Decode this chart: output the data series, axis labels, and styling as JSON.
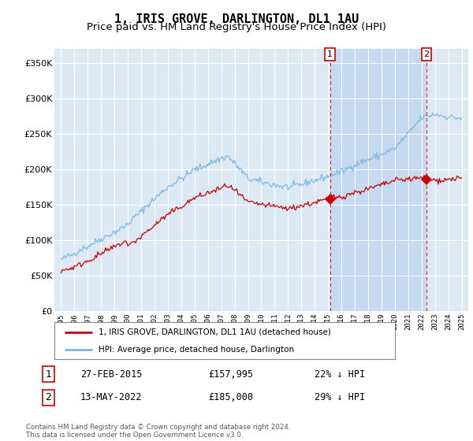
{
  "title": "1, IRIS GROVE, DARLINGTON, DL1 1AU",
  "subtitle": "Price paid vs. HM Land Registry's House Price Index (HPI)",
  "ylim": [
    0,
    370000
  ],
  "yticks": [
    0,
    50000,
    100000,
    150000,
    200000,
    250000,
    300000,
    350000
  ],
  "ytick_labels": [
    "£0",
    "£50K",
    "£100K",
    "£150K",
    "£200K",
    "£250K",
    "£300K",
    "£350K"
  ],
  "hpi_color": "#7db9e0",
  "price_color": "#cc0000",
  "bg_color": "#dce9f5",
  "bg_highlight_color": "#c5d9f0",
  "legend_label_price": "1, IRIS GROVE, DARLINGTON, DL1 1AU (detached house)",
  "legend_label_hpi": "HPI: Average price, detached house, Darlington",
  "sale1_date": "27-FEB-2015",
  "sale1_price": 157995,
  "sale1_label": "22% ↓ HPI",
  "sale1_x": 2015.15,
  "sale2_date": "13-MAY-2022",
  "sale2_price": 185000,
  "sale2_label": "29% ↓ HPI",
  "sale2_x": 2022.37,
  "footer": "Contains HM Land Registry data © Crown copyright and database right 2024.\nThis data is licensed under the Open Government Licence v3.0.",
  "title_fontsize": 11,
  "subtitle_fontsize": 9.5,
  "xstart": 1995,
  "xend": 2025
}
